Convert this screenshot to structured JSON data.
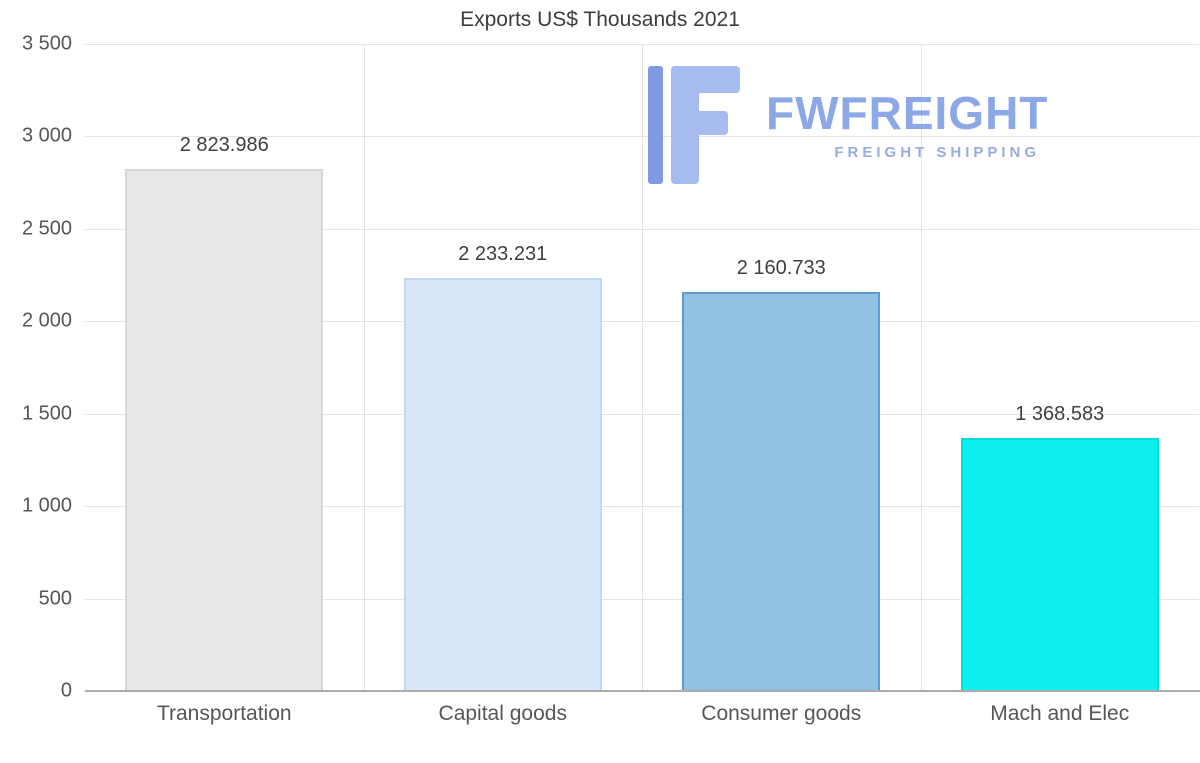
{
  "title": "Exports US$ Thousands 2021",
  "logo": {
    "name": "FWFREIGHT",
    "subtitle": "FREIGHT SHIPPING",
    "text_color": "#8da8e6",
    "icon_color_light": "#a6bbee",
    "icon_color_dark": "#7f9ae2"
  },
  "chart_data": {
    "type": "bar",
    "title": "Exports US$ Thousands 2021",
    "categories": [
      "Transportation",
      "Capital goods",
      "Consumer goods",
      "Mach and Elec"
    ],
    "values": [
      2823.986,
      2233.231,
      2160.733,
      1368.583
    ],
    "value_labels": [
      "2 823.986",
      "2 233.231",
      "2 160.733",
      "1 368.583"
    ],
    "bar_colors": [
      "#e8e8e8",
      "#d7e6f8",
      "#93c1e3",
      "#0defef"
    ],
    "bar_border_colors": [
      "#d7d7d7",
      "#c3d7f0",
      "#5e9ccf",
      "#00dcdc"
    ],
    "ylim": [
      0,
      3500
    ],
    "yticks": [
      0,
      500,
      1000,
      1500,
      2000,
      2500,
      3000,
      3500
    ],
    "ytick_labels": [
      "0",
      "500",
      "1 000",
      "1 500",
      "2 000",
      "2 500",
      "3 000",
      "3 500"
    ],
    "grid": true,
    "legend": "none",
    "xlabel": "",
    "ylabel": ""
  }
}
